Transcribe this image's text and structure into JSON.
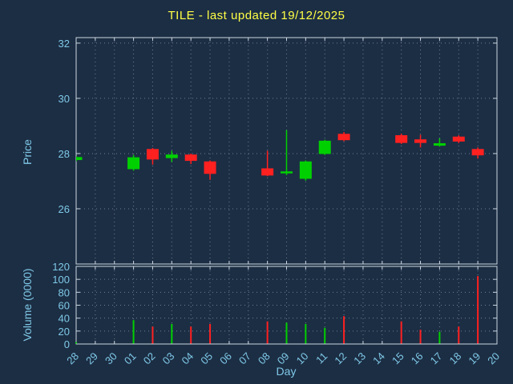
{
  "colors": {
    "background": "#1c2e44",
    "title": "#ffff44",
    "axis_text": "#7fc9e8",
    "border": "#ccd6e0",
    "grid": "#8b9bb0",
    "up": "#00d000",
    "down": "#ff2020"
  },
  "chart_data": {
    "type": "candlestick+volume",
    "title": "TILE - last updated 19/12/2025",
    "xlabel": "Day",
    "ylabel_price": "Price",
    "ylabel_volume": "Volume (0000)",
    "x_ticks": [
      "28",
      "29",
      "30",
      "01",
      "02",
      "03",
      "04",
      "05",
      "06",
      "07",
      "08",
      "09",
      "10",
      "11",
      "12",
      "13",
      "14",
      "15",
      "16",
      "17",
      "18",
      "19",
      "20"
    ],
    "price_ticks": [
      26,
      28,
      30,
      32
    ],
    "price_range": [
      24.0,
      32.2
    ],
    "volume_ticks": [
      0,
      20,
      40,
      60,
      80,
      100,
      120
    ],
    "volume_range": [
      0,
      120
    ],
    "grid": true,
    "legend": "none",
    "candles": [
      {
        "day": "28",
        "open": 27.78,
        "high": 27.9,
        "low": 27.72,
        "close": 27.86,
        "volume": 3
      },
      {
        "day": "01",
        "open": 27.45,
        "high": 27.95,
        "low": 27.38,
        "close": 27.85,
        "volume": 37
      },
      {
        "day": "02",
        "open": 28.15,
        "high": 28.2,
        "low": 27.6,
        "close": 27.8,
        "volume": 27
      },
      {
        "day": "03",
        "open": 27.85,
        "high": 28.1,
        "low": 27.7,
        "close": 27.95,
        "volume": 31
      },
      {
        "day": "04",
        "open": 27.95,
        "high": 28.0,
        "low": 27.62,
        "close": 27.75,
        "volume": 27
      },
      {
        "day": "05",
        "open": 27.7,
        "high": 27.75,
        "low": 27.05,
        "close": 27.28,
        "volume": 31
      },
      {
        "day": "08",
        "open": 27.45,
        "high": 28.1,
        "low": 27.18,
        "close": 27.22,
        "volume": 35
      },
      {
        "day": "09",
        "open": 27.3,
        "high": 28.85,
        "low": 27.22,
        "close": 27.34,
        "volume": 33
      },
      {
        "day": "10",
        "open": 27.1,
        "high": 27.75,
        "low": 27.02,
        "close": 27.7,
        "volume": 31
      },
      {
        "day": "11",
        "open": 28.0,
        "high": 28.5,
        "low": 27.95,
        "close": 28.45,
        "volume": 25
      },
      {
        "day": "12",
        "open": 28.7,
        "high": 28.78,
        "low": 28.45,
        "close": 28.5,
        "volume": 43
      },
      {
        "day": "15",
        "open": 28.65,
        "high": 28.72,
        "low": 28.35,
        "close": 28.4,
        "volume": 35
      },
      {
        "day": "16",
        "open": 28.5,
        "high": 28.68,
        "low": 28.22,
        "close": 28.4,
        "volume": 22
      },
      {
        "day": "17",
        "open": 28.3,
        "high": 28.55,
        "low": 28.25,
        "close": 28.36,
        "volume": 19
      },
      {
        "day": "18",
        "open": 28.6,
        "high": 28.66,
        "low": 28.38,
        "close": 28.45,
        "volume": 27
      },
      {
        "day": "19",
        "open": 28.15,
        "high": 28.22,
        "low": 27.82,
        "close": 27.95,
        "volume": 105
      }
    ]
  }
}
